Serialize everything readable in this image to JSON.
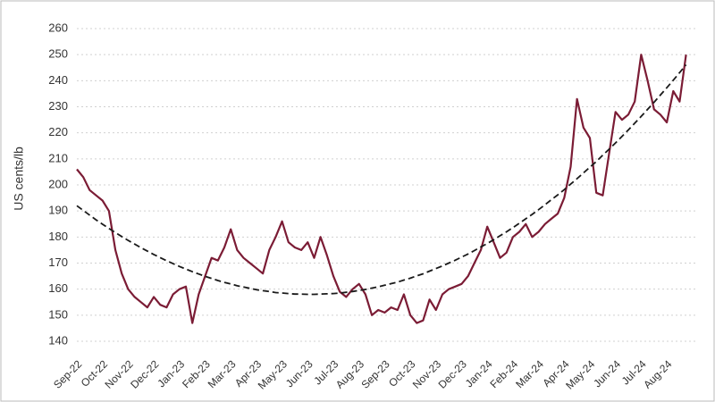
{
  "chart_data": {
    "type": "line",
    "ylabel": "US cents/lb",
    "ylim": [
      140,
      260
    ],
    "yticks": [
      140,
      150,
      160,
      170,
      180,
      190,
      200,
      210,
      220,
      230,
      240,
      250,
      260
    ],
    "grid": true,
    "categories": [
      "Sep-22",
      null,
      null,
      null,
      "Oct-22",
      null,
      null,
      null,
      "Nov-22",
      null,
      null,
      null,
      "Dec-22",
      null,
      null,
      null,
      "Jan-23",
      null,
      null,
      null,
      "Feb-23",
      null,
      null,
      null,
      "Mar-23",
      null,
      null,
      null,
      "Apr-23",
      null,
      null,
      null,
      "May-23",
      null,
      null,
      null,
      "Jun-23",
      null,
      null,
      null,
      "Jul-23",
      null,
      null,
      null,
      "Aug-23",
      null,
      null,
      null,
      "Sep-23",
      null,
      null,
      null,
      "Oct-23",
      null,
      null,
      null,
      "Nov-23",
      null,
      null,
      null,
      "Dec-23",
      null,
      null,
      null,
      "Jan-24",
      null,
      null,
      null,
      "Feb-24",
      null,
      null,
      null,
      "Mar-24",
      null,
      null,
      null,
      "Apr-24",
      null,
      null,
      null,
      "May-24",
      null,
      null,
      null,
      "Jun-24",
      null,
      null,
      null,
      "Jul-24",
      null,
      null,
      null,
      "Aug-24",
      null,
      null,
      null
    ],
    "series": [
      {
        "color": "#7b1c35",
        "style": "solid",
        "values": [
          206,
          203,
          198,
          196,
          194,
          190,
          175,
          166,
          160,
          157,
          155,
          153,
          157,
          154,
          153,
          158,
          160,
          161,
          147,
          158,
          165,
          172,
          171,
          176,
          183,
          175,
          172,
          170,
          168,
          166,
          175,
          180,
          186,
          178,
          176,
          175,
          178,
          172,
          180,
          173,
          165,
          159,
          157,
          160,
          162,
          158,
          150,
          152,
          151,
          153,
          152,
          158,
          150,
          147,
          148,
          156,
          152,
          158,
          160,
          161,
          162,
          165,
          170,
          175,
          184,
          178,
          172,
          174,
          180,
          182,
          185,
          180,
          182,
          185,
          187,
          189,
          195,
          207,
          233,
          222,
          218,
          197,
          196,
          212,
          228,
          225,
          227,
          232,
          250,
          240,
          229,
          227,
          224,
          236,
          232,
          250
        ]
      },
      {
        "color": "#1a1a1a",
        "style": "dashed",
        "values": [
          192.0,
          190.2,
          188.4,
          186.6,
          184.9,
          183.3,
          181.7,
          180.2,
          178.7,
          177.3,
          175.9,
          174.6,
          173.3,
          172.1,
          170.9,
          169.8,
          168.7,
          167.7,
          166.7,
          165.8,
          164.9,
          164.1,
          163.3,
          162.6,
          162.0,
          161.3,
          160.8,
          160.3,
          159.8,
          159.4,
          159.1,
          158.7,
          158.5,
          158.3,
          158.1,
          158.1,
          158.0,
          158.0,
          158.1,
          158.2,
          158.3,
          158.5,
          158.8,
          159.1,
          159.5,
          159.9,
          160.4,
          160.9,
          161.5,
          162.1,
          162.7,
          163.5,
          164.2,
          165.1,
          165.9,
          166.9,
          167.9,
          168.9,
          170.0,
          171.1,
          172.3,
          173.5,
          174.8,
          176.2,
          177.5,
          179.0,
          180.5,
          182.0,
          183.6,
          185.3,
          187.0,
          188.7,
          190.5,
          192.4,
          194.3,
          196.2,
          198.2,
          200.3,
          202.4,
          204.6,
          206.8,
          209.0,
          211.4,
          213.7,
          216.1,
          218.6,
          221.1,
          223.7,
          226.3,
          229.0,
          231.7,
          234.5,
          237.3,
          240.2,
          243.1,
          246.1
        ]
      }
    ]
  }
}
